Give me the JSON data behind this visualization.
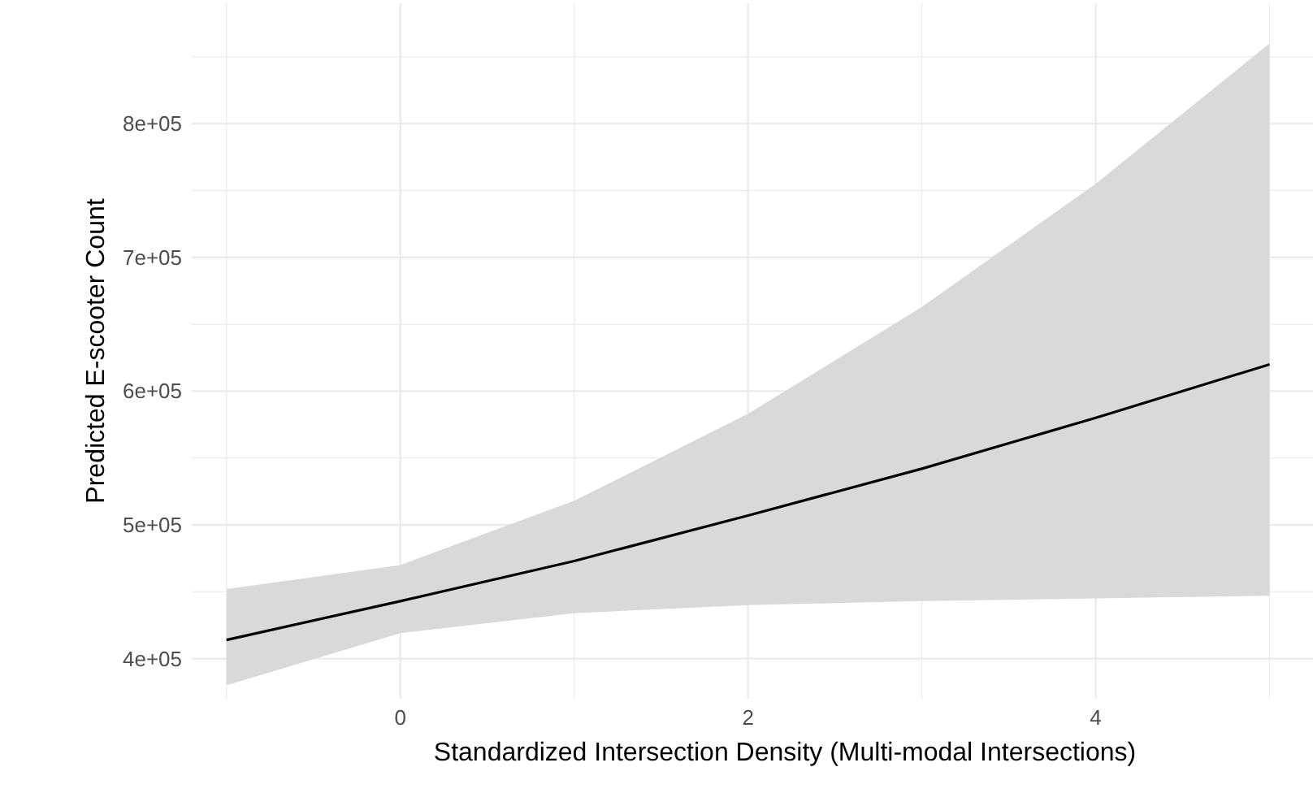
{
  "chart_data": {
    "type": "line",
    "xlabel": "Standardized Intersection Density (Multi-modal Intersections)",
    "ylabel": "Predicted E-scooter Count",
    "x": [
      -1,
      0,
      1,
      2,
      3,
      4,
      5
    ],
    "series": [
      {
        "color": "#000000",
        "values": [
          414000,
          443000,
          473000,
          507000,
          542000,
          580000,
          620000
        ],
        "lower": [
          380000,
          419000,
          434000,
          440000,
          443000,
          445000,
          447000
        ],
        "upper": [
          452000,
          470000,
          518000,
          583000,
          663000,
          755000,
          860000
        ]
      }
    ],
    "xlim": [
      -1.2,
      5.25
    ],
    "ylim": [
      370000,
      890000
    ],
    "xticks": [
      {
        "value": -1,
        "label": null
      },
      0,
      {
        "value": 1,
        "label": null
      },
      2,
      {
        "value": 3,
        "label": null
      },
      4,
      {
        "value": 5,
        "label": null
      }
    ],
    "yticks": [
      {
        "value": 400000,
        "label": "4e+05"
      },
      {
        "value": 450000,
        "label": null
      },
      {
        "value": 500000,
        "label": "5e+05"
      },
      {
        "value": 550000,
        "label": null
      },
      {
        "value": 600000,
        "label": "6e+05"
      },
      {
        "value": 650000,
        "label": null
      },
      {
        "value": 700000,
        "label": "7e+05"
      },
      {
        "value": 750000,
        "label": null
      },
      {
        "value": 800000,
        "label": "8e+05"
      },
      {
        "value": 850000,
        "label": null
      }
    ],
    "grid": true,
    "line_style": "solid"
  }
}
